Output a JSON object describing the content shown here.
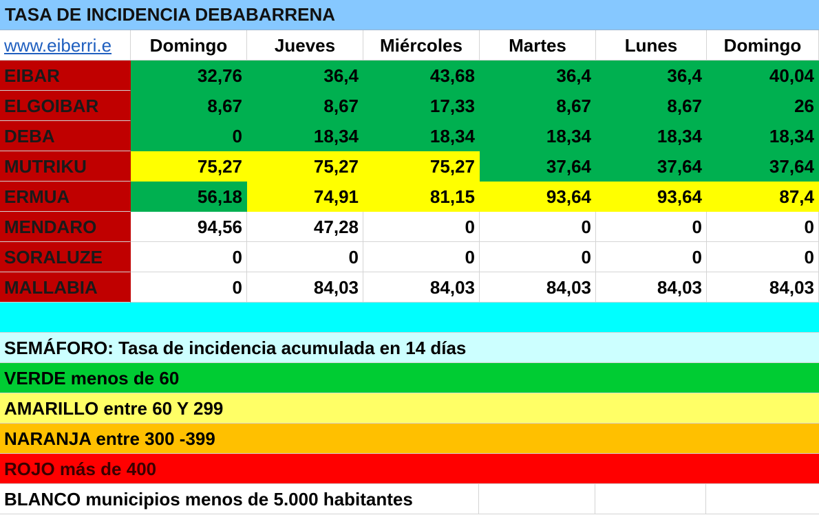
{
  "title": "TASA DE INCIDENCIA DEBABARRENA",
  "url_text": "www.eiberri.e",
  "headers": [
    "Domingo",
    "Jueves",
    "Miércoles",
    "Martes",
    "Lunes",
    "Domingo"
  ],
  "colors": {
    "green": "#00b050",
    "yellow": "#ffff00",
    "white": "#ffffff",
    "name_bg": "#c00000",
    "cyan": "#00ffff",
    "legend_bg": "#ccffff",
    "legend_green": "#00cc33",
    "legend_yellow": "#ffff66",
    "legend_orange": "#ffc000",
    "legend_red": "#ff0000"
  },
  "rows": [
    {
      "name": "EIBAR",
      "values": [
        "32,76",
        "36,4",
        "43,68",
        "36,4",
        "36,4",
        "40,04"
      ],
      "fills": [
        "green",
        "green",
        "green",
        "green",
        "green",
        "green"
      ]
    },
    {
      "name": "ELGOIBAR",
      "values": [
        "8,67",
        "8,67",
        "17,33",
        "8,67",
        "8,67",
        "26"
      ],
      "fills": [
        "green",
        "green",
        "green",
        "green",
        "green",
        "green"
      ]
    },
    {
      "name": "DEBA",
      "values": [
        "0",
        "18,34",
        "18,34",
        "18,34",
        "18,34",
        "18,34"
      ],
      "fills": [
        "green",
        "green",
        "green",
        "green",
        "green",
        "green"
      ]
    },
    {
      "name": "MUTRIKU",
      "values": [
        "75,27",
        "75,27",
        "75,27",
        "37,64",
        "37,64",
        "37,64"
      ],
      "fills": [
        "yellow",
        "yellow",
        "yellow",
        "green",
        "green",
        "green"
      ]
    },
    {
      "name": "ERMUA",
      "values": [
        "56,18",
        "74,91",
        "81,15",
        "93,64",
        "93,64",
        "87,4"
      ],
      "fills": [
        "green",
        "yellow",
        "yellow",
        "yellow",
        "yellow",
        "yellow"
      ]
    },
    {
      "name": "MENDARO",
      "values": [
        "94,56",
        "47,28",
        "0",
        "0",
        "0",
        "0"
      ],
      "fills": [
        "white",
        "white",
        "white",
        "white",
        "white",
        "white"
      ]
    },
    {
      "name": "SORALUZE",
      "values": [
        "0",
        "0",
        "0",
        "0",
        "0",
        "0"
      ],
      "fills": [
        "white",
        "white",
        "white",
        "white",
        "white",
        "white"
      ]
    },
    {
      "name": "MALLABIA",
      "values": [
        "0",
        "84,03",
        "84,03",
        "84,03",
        "84,03",
        "84,03"
      ],
      "fills": [
        "white",
        "white",
        "white",
        "white",
        "white",
        "white"
      ]
    }
  ],
  "legend": {
    "semaforo": "SEMÁFORO:  Tasa de incidencia acumulada en 14 días",
    "verde": "VERDE menos de 60",
    "amarillo": "AMARILLO entre 60 Y 299",
    "naranja": "NARANJA entre 300 -399",
    "rojo": "ROJO más de 400",
    "blanco": "BLANCO municipios menos de 5.000 habitantes"
  }
}
